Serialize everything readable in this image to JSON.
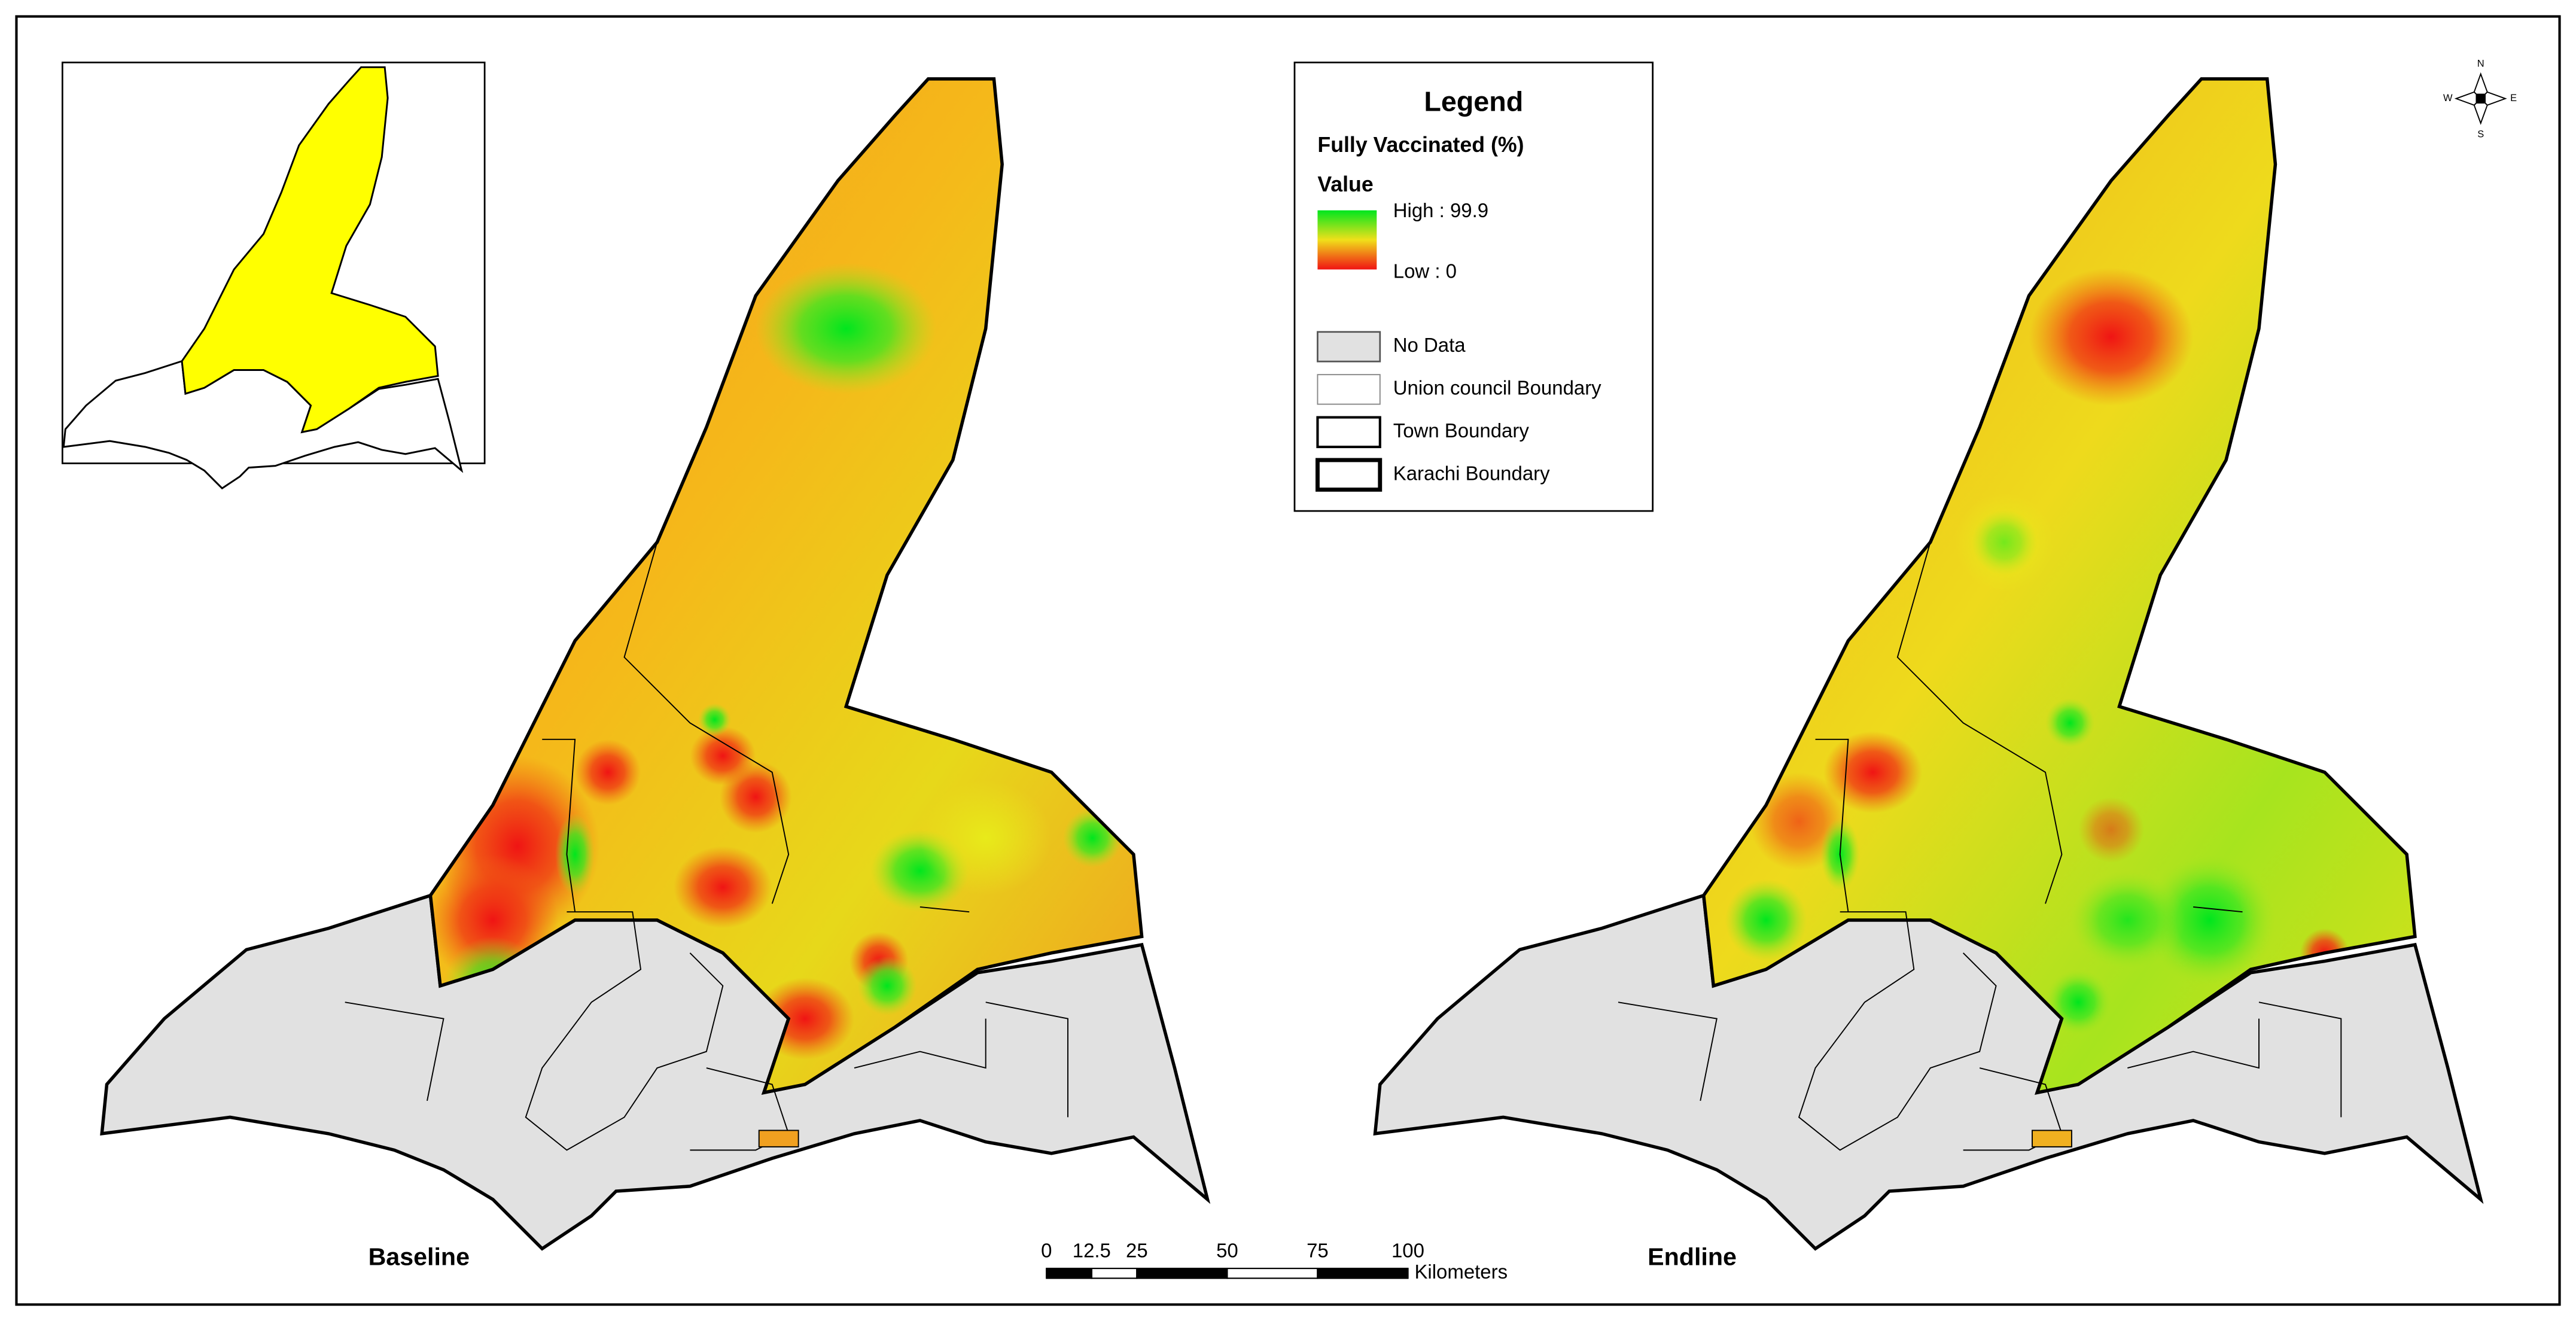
{
  "legend": {
    "title": "Legend",
    "variable": "Fully Vaccinated (%)",
    "field": "Value",
    "high": "High : 99.9",
    "low": "Low : 0",
    "items": [
      "No Data",
      "Union council Boundary",
      "Town Boundary",
      "Karachi Boundary"
    ]
  },
  "maps": {
    "left": "Baseline",
    "right": "Endline"
  },
  "scale_bar": {
    "ticks": [
      0,
      12.5,
      25,
      50,
      75,
      100
    ],
    "unit": "Kilometers"
  },
  "compass": {
    "n": "N",
    "s": "S",
    "e": "E",
    "w": "W"
  }
}
